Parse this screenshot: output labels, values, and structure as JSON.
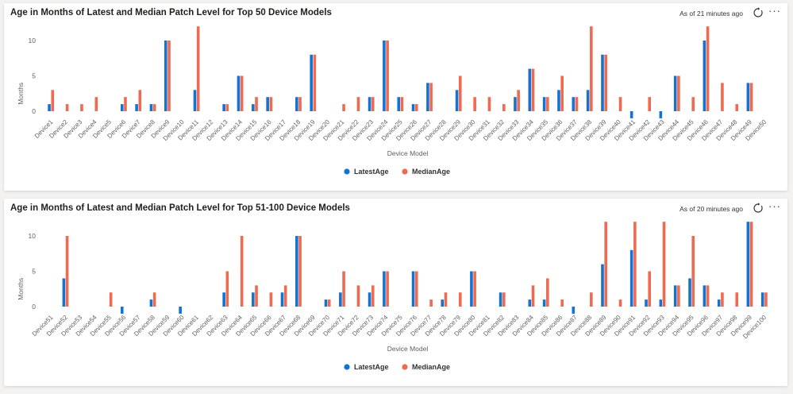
{
  "cards": [
    {
      "title": "Age in Months of Latest and Median Patch Level for Top 50 Device Models",
      "status": "As of 21 minutes ago"
    },
    {
      "title": "Age in Months of Latest and Median Patch Level for Top 51-100 Device Models",
      "status": "As of 20 minutes ago"
    }
  ],
  "icons": {
    "refresh": "refresh-icon",
    "more": "more-options-icon"
  },
  "colors": {
    "latest": "#1672d1",
    "median": "#ee6a51",
    "grid": "#e1dfdd",
    "axis_text": "#605e5c"
  },
  "chart_data": [
    {
      "type": "bar",
      "title": "Age in Months of Latest and Median Patch Level for Top 50 Device Models",
      "xlabel": "Device Model",
      "ylabel": "Months",
      "ylim": [
        -1,
        12
      ],
      "yticks": [
        0,
        5,
        10
      ],
      "grid": false,
      "legend_position": "bottom",
      "categories": [
        "Device1",
        "Device2",
        "Device3",
        "Device4",
        "Device5",
        "Device6",
        "Device7",
        "Device8",
        "Device9",
        "Device10",
        "Device11",
        "Device12",
        "Device13",
        "Device14",
        "Device15",
        "Device16",
        "Device17",
        "Device18",
        "Device19",
        "Device20",
        "Device21",
        "Device22",
        "Device23",
        "Device24",
        "Device25",
        "Device26",
        "Device27",
        "Device28",
        "Device29",
        "Device30",
        "Device31",
        "Device32",
        "Device33",
        "Device34",
        "Device35",
        "Device36",
        "Device37",
        "Device38",
        "Device39",
        "Device40",
        "Device41",
        "Device42",
        "Device43",
        "Device44",
        "Device45",
        "Device46",
        "Device47",
        "Device48",
        "Device49",
        "Device50"
      ],
      "series": [
        {
          "name": "LatestAge",
          "values": [
            1,
            0,
            0,
            0,
            0,
            1,
            1,
            1,
            10,
            0,
            3,
            0,
            1,
            5,
            1,
            2,
            0,
            2,
            8,
            0,
            0,
            0,
            2,
            10,
            2,
            1,
            4,
            0,
            3,
            0,
            0,
            0,
            2,
            6,
            2,
            3,
            2,
            3,
            8,
            0,
            -1,
            0,
            -1,
            5,
            0,
            10,
            0,
            0,
            4,
            0
          ]
        },
        {
          "name": "MedianAge",
          "values": [
            3,
            1,
            1,
            2,
            0,
            2,
            3,
            1,
            10,
            0,
            12,
            0,
            1,
            5,
            2,
            2,
            0,
            2,
            8,
            0,
            1,
            2,
            2,
            10,
            2,
            1,
            4,
            0,
            5,
            2,
            2,
            1,
            3,
            6,
            2,
            5,
            2,
            12,
            8,
            2,
            0,
            2,
            0,
            5,
            2,
            12,
            4,
            1,
            4,
            0
          ]
        }
      ]
    },
    {
      "type": "bar",
      "title": "Age in Months of Latest and Median Patch Level for Top 51-100 Device Models",
      "xlabel": "Device Model",
      "ylabel": "Months",
      "ylim": [
        -1,
        12
      ],
      "yticks": [
        0,
        5,
        10
      ],
      "grid": false,
      "legend_position": "bottom",
      "categories": [
        "Device51",
        "Device52",
        "Device53",
        "Device54",
        "Device55",
        "Device56",
        "Device57",
        "Device58",
        "Device59",
        "Device60",
        "Device61",
        "Device62",
        "Device63",
        "Device64",
        "Device65",
        "Device66",
        "Device67",
        "Device68",
        "Device69",
        "Device70",
        "Device71",
        "Device72",
        "Device73",
        "Device74",
        "Device75",
        "Device76",
        "Device77",
        "Device78",
        "Device79",
        "Device80",
        "Device81",
        "Device82",
        "Device83",
        "Device84",
        "Device85",
        "Device86",
        "Device87",
        "Device88",
        "Device89",
        "Device90",
        "Device91",
        "Device92",
        "Device93",
        "Device94",
        "Device95",
        "Device96",
        "Device97",
        "Device98",
        "Device99",
        "Device100"
      ],
      "series": [
        {
          "name": "LatestAge",
          "values": [
            0,
            4,
            0,
            0,
            0,
            -1,
            0,
            1,
            0,
            -1,
            0,
            0,
            2,
            0,
            2,
            0,
            2,
            10,
            0,
            1,
            2,
            0,
            2,
            5,
            0,
            5,
            0,
            1,
            0,
            5,
            0,
            2,
            0,
            1,
            1,
            0,
            -1,
            0,
            6,
            0,
            8,
            1,
            1,
            3,
            4,
            3,
            1,
            0,
            12,
            2
          ]
        },
        {
          "name": "MedianAge",
          "values": [
            0,
            10,
            0,
            0,
            2,
            0,
            0,
            2,
            0,
            0,
            0,
            0,
            5,
            10,
            3,
            2,
            3,
            10,
            0,
            1,
            5,
            3,
            3,
            5,
            0,
            5,
            1,
            2,
            2,
            5,
            0,
            2,
            0,
            3,
            4,
            1,
            0,
            2,
            12,
            1,
            12,
            5,
            12,
            3,
            10,
            3,
            2,
            2,
            12,
            2
          ]
        }
      ]
    }
  ]
}
